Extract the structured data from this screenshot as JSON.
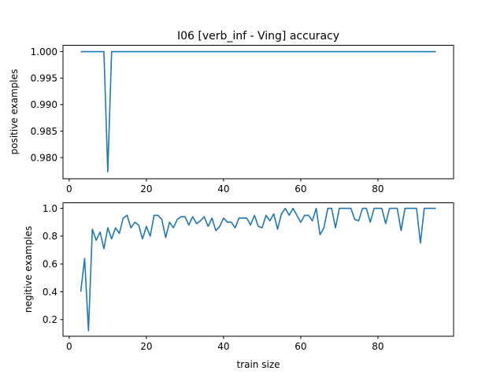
{
  "chart_data": [
    {
      "type": "line",
      "title": "I06 [verb_inf - Ving] accuracy",
      "xlabel": "",
      "ylabel": "positive examples",
      "xlim": [
        -1.6,
        99.6
      ],
      "ylim": [
        0.976,
        1.0012
      ],
      "xticks": [
        0,
        20,
        40,
        60,
        80
      ],
      "yticks": [
        0.98,
        0.985,
        0.99,
        0.995,
        1.0
      ],
      "ytick_decimals": 3,
      "grid": false,
      "color": "#1f77b4",
      "x": [
        3,
        4,
        5,
        6,
        7,
        8,
        9,
        10,
        11,
        12,
        13,
        14,
        15,
        16,
        17,
        18,
        19,
        20,
        21,
        22,
        23,
        24,
        25,
        26,
        27,
        28,
        29,
        30,
        31,
        32,
        33,
        34,
        35,
        36,
        37,
        38,
        39,
        40,
        41,
        42,
        43,
        44,
        45,
        46,
        47,
        48,
        49,
        50,
        51,
        52,
        53,
        54,
        55,
        56,
        57,
        58,
        59,
        60,
        61,
        62,
        63,
        64,
        65,
        66,
        67,
        68,
        69,
        70,
        71,
        72,
        73,
        74,
        75,
        76,
        77,
        78,
        79,
        80,
        81,
        82,
        83,
        84,
        85,
        86,
        87,
        88,
        89,
        90,
        91,
        92,
        93,
        94,
        95
      ],
      "y": [
        1.0,
        1.0,
        1.0,
        1.0,
        1.0,
        1.0,
        1.0,
        0.9773,
        1.0,
        1.0,
        1.0,
        1.0,
        1.0,
        1.0,
        1.0,
        1.0,
        1.0,
        1.0,
        1.0,
        1.0,
        1.0,
        1.0,
        1.0,
        1.0,
        1.0,
        1.0,
        1.0,
        1.0,
        1.0,
        1.0,
        1.0,
        1.0,
        1.0,
        1.0,
        1.0,
        1.0,
        1.0,
        1.0,
        1.0,
        1.0,
        1.0,
        1.0,
        1.0,
        1.0,
        1.0,
        1.0,
        1.0,
        1.0,
        1.0,
        1.0,
        1.0,
        1.0,
        1.0,
        1.0,
        1.0,
        1.0,
        1.0,
        1.0,
        1.0,
        1.0,
        1.0,
        1.0,
        1.0,
        1.0,
        1.0,
        1.0,
        1.0,
        1.0,
        1.0,
        1.0,
        1.0,
        1.0,
        1.0,
        1.0,
        1.0,
        1.0,
        1.0,
        1.0,
        1.0,
        1.0,
        1.0,
        1.0,
        1.0,
        1.0,
        1.0,
        1.0,
        1.0,
        1.0,
        1.0,
        1.0,
        1.0,
        1.0,
        1.0
      ]
    },
    {
      "type": "line",
      "title": "",
      "xlabel": "train size",
      "ylabel": "negitive examples",
      "xlim": [
        -1.6,
        99.6
      ],
      "ylim": [
        0.08,
        1.04
      ],
      "xticks": [
        0,
        20,
        40,
        60,
        80
      ],
      "yticks": [
        0.2,
        0.4,
        0.6,
        0.8,
        1.0
      ],
      "ytick_decimals": 1,
      "grid": false,
      "color": "#1f77b4",
      "x": [
        3,
        4,
        5,
        6,
        7,
        8,
        9,
        10,
        11,
        12,
        13,
        14,
        15,
        16,
        17,
        18,
        19,
        20,
        21,
        22,
        23,
        24,
        25,
        26,
        27,
        28,
        29,
        30,
        31,
        32,
        33,
        34,
        35,
        36,
        37,
        38,
        39,
        40,
        41,
        42,
        43,
        44,
        45,
        46,
        47,
        48,
        49,
        50,
        51,
        52,
        53,
        54,
        55,
        56,
        57,
        58,
        59,
        60,
        61,
        62,
        63,
        64,
        65,
        66,
        67,
        68,
        69,
        70,
        71,
        72,
        73,
        74,
        75,
        76,
        77,
        78,
        79,
        80,
        81,
        82,
        83,
        84,
        85,
        86,
        87,
        88,
        89,
        90,
        91,
        92,
        93,
        94,
        95
      ],
      "y": [
        0.4,
        0.64,
        0.12,
        0.85,
        0.77,
        0.83,
        0.71,
        0.86,
        0.78,
        0.86,
        0.82,
        0.93,
        0.95,
        0.86,
        0.9,
        0.88,
        0.78,
        0.87,
        0.8,
        0.95,
        0.95,
        0.92,
        0.79,
        0.9,
        0.86,
        0.92,
        0.94,
        0.94,
        0.88,
        0.94,
        0.89,
        0.91,
        0.94,
        0.87,
        0.93,
        0.84,
        0.87,
        0.93,
        0.9,
        0.9,
        0.86,
        0.93,
        0.93,
        0.93,
        0.88,
        0.95,
        0.87,
        0.86,
        0.95,
        0.91,
        0.96,
        0.85,
        0.96,
        1.0,
        0.95,
        1.0,
        0.95,
        0.9,
        0.95,
        0.95,
        0.91,
        1.0,
        0.81,
        0.86,
        1.0,
        1.0,
        0.86,
        1.0,
        1.0,
        1.0,
        1.0,
        0.92,
        0.91,
        1.0,
        1.0,
        0.9,
        1.0,
        1.0,
        1.0,
        0.89,
        1.0,
        1.0,
        1.0,
        0.84,
        1.0,
        1.0,
        1.0,
        1.0,
        0.75,
        1.0,
        1.0,
        1.0,
        1.0
      ]
    }
  ]
}
